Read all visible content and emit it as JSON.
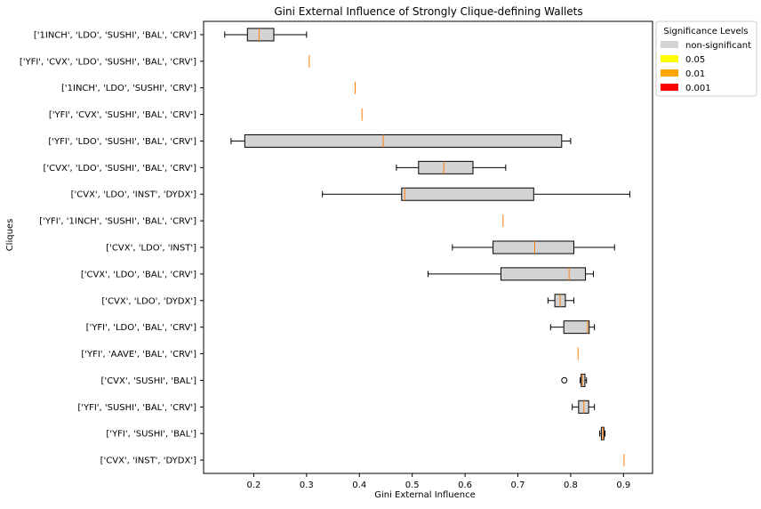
{
  "chart_data": {
    "type": "boxplot",
    "orientation": "horizontal",
    "title": "Gini External Influence of Strongly Clique-defining Wallets",
    "xlabel": "Gini External Influence",
    "ylabel": "Cliques",
    "xlim": [
      0.105,
      0.955
    ],
    "xticks": [
      "0.2",
      "0.3",
      "0.4",
      "0.5",
      "0.6",
      "0.7",
      "0.8",
      "0.9"
    ],
    "grid": false,
    "legend": {
      "title": "Significance Levels",
      "placement": "outside-top-right",
      "entries": [
        {
          "label": "non-significant",
          "color": "#d3d3d3"
        },
        {
          "label": "0.05",
          "color": "#ffff00"
        },
        {
          "label": "0.01",
          "color": "#ffa500"
        },
        {
          "label": "0.001",
          "color": "#ff0000"
        }
      ]
    },
    "colors": {
      "box_fill": "#d3d3d3",
      "median": "#ff7f0e",
      "edge": "#000000"
    },
    "boxes": [
      {
        "label": "['1INCH', 'LDO', 'SUSHI', 'BAL', 'CRV']",
        "whisker_low": 0.145,
        "q1": 0.188,
        "median": 0.21,
        "q3": 0.238,
        "whisker_high": 0.3,
        "outliers": []
      },
      {
        "label": "['YFI', 'CVX', 'LDO', 'SUSHI', 'BAL', 'CRV']",
        "whisker_low": 0.305,
        "q1": 0.305,
        "median": 0.305,
        "q3": 0.305,
        "whisker_high": 0.305,
        "outliers": []
      },
      {
        "label": "['1INCH', 'LDO', 'SUSHI', 'CRV']",
        "whisker_low": 0.392,
        "q1": 0.392,
        "median": 0.392,
        "q3": 0.392,
        "whisker_high": 0.392,
        "outliers": []
      },
      {
        "label": "['YFI', 'CVX', 'SUSHI', 'BAL', 'CRV']",
        "whisker_low": 0.405,
        "q1": 0.405,
        "median": 0.405,
        "q3": 0.405,
        "whisker_high": 0.405,
        "outliers": []
      },
      {
        "label": "['YFI', 'LDO', 'SUSHI', 'BAL', 'CRV']",
        "whisker_low": 0.157,
        "q1": 0.183,
        "median": 0.445,
        "q3": 0.783,
        "whisker_high": 0.8,
        "outliers": []
      },
      {
        "label": "['CVX', 'LDO', 'SUSHI', 'BAL', 'CRV']",
        "whisker_low": 0.47,
        "q1": 0.512,
        "median": 0.56,
        "q3": 0.615,
        "whisker_high": 0.677,
        "outliers": []
      },
      {
        "label": "['CVX', 'LDO', 'INST', 'DYDX']",
        "whisker_low": 0.33,
        "q1": 0.48,
        "median": 0.486,
        "q3": 0.73,
        "whisker_high": 0.912,
        "outliers": []
      },
      {
        "label": "['YFI', '1INCH', 'SUSHI', 'BAL', 'CRV']",
        "whisker_low": 0.672,
        "q1": 0.672,
        "median": 0.672,
        "q3": 0.672,
        "whisker_high": 0.672,
        "outliers": []
      },
      {
        "label": "['CVX', 'LDO', 'INST']",
        "whisker_low": 0.576,
        "q1": 0.653,
        "median": 0.732,
        "q3": 0.806,
        "whisker_high": 0.883,
        "outliers": []
      },
      {
        "label": "['CVX', 'LDO', 'BAL', 'CRV']",
        "whisker_low": 0.53,
        "q1": 0.668,
        "median": 0.797,
        "q3": 0.828,
        "whisker_high": 0.843,
        "outliers": []
      },
      {
        "label": "['CVX', 'LDO', 'DYDX']",
        "whisker_low": 0.757,
        "q1": 0.77,
        "median": 0.78,
        "q3": 0.79,
        "whisker_high": 0.806,
        "outliers": []
      },
      {
        "label": "['YFI', 'LDO', 'BAL', 'CRV']",
        "whisker_low": 0.762,
        "q1": 0.787,
        "median": 0.832,
        "q3": 0.835,
        "whisker_high": 0.845,
        "outliers": []
      },
      {
        "label": "['YFI', 'AAVE', 'BAL', 'CRV']",
        "whisker_low": 0.814,
        "q1": 0.814,
        "median": 0.814,
        "q3": 0.814,
        "whisker_high": 0.814,
        "outliers": []
      },
      {
        "label": "['CVX', 'SUSHI', 'BAL']",
        "whisker_low": 0.818,
        "q1": 0.82,
        "median": 0.822,
        "q3": 0.827,
        "whisker_high": 0.83,
        "outliers": [
          0.788
        ]
      },
      {
        "label": "['YFI', 'SUSHI', 'BAL', 'CRV']",
        "whisker_low": 0.803,
        "q1": 0.815,
        "median": 0.825,
        "q3": 0.834,
        "whisker_high": 0.845,
        "outliers": []
      },
      {
        "label": "['YFI', 'SUSHI', 'BAL']",
        "whisker_low": 0.855,
        "q1": 0.858,
        "median": 0.861,
        "q3": 0.863,
        "whisker_high": 0.865,
        "outliers": []
      },
      {
        "label": "['CVX', 'INST', 'DYDX']",
        "whisker_low": 0.901,
        "q1": 0.901,
        "median": 0.901,
        "q3": 0.901,
        "whisker_high": 0.901,
        "outliers": []
      }
    ]
  }
}
